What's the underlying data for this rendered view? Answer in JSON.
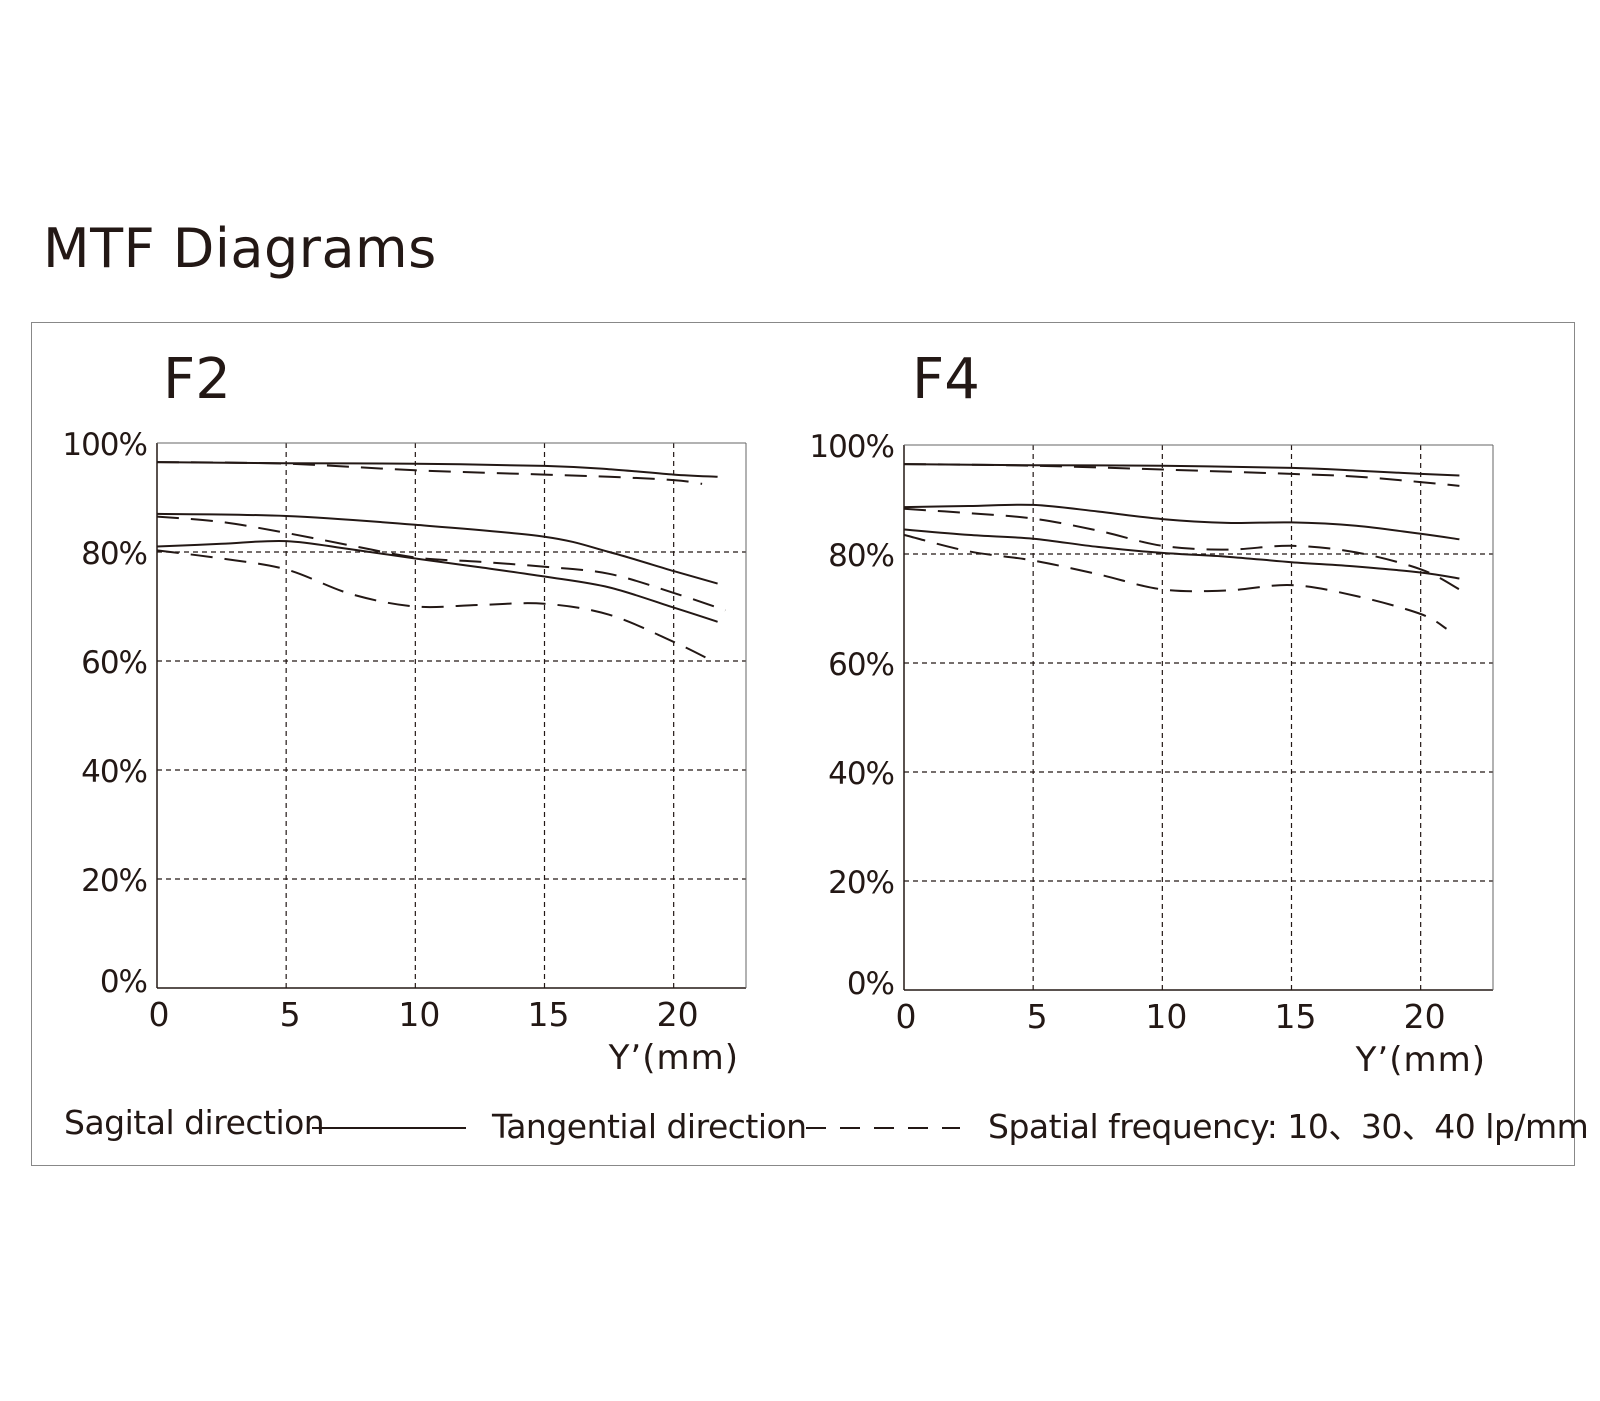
{
  "title": "MTF Diagrams",
  "legend": {
    "sagittal": "Sagital direction",
    "tangential": "Tangential direction",
    "spatial_frequency": "Spatial frequency: 10、30、40 lp/mm"
  },
  "colors": {
    "line": "#231815",
    "grid": "#231815",
    "border": "#888888"
  },
  "chart_data": [
    {
      "type": "line",
      "title": "F2",
      "xlabel": "Y’(mm)",
      "ylabel": "",
      "xlim": [
        0,
        22.8
      ],
      "ylim": [
        0,
        100
      ],
      "x_ticks": [
        0,
        5,
        10,
        15,
        20
      ],
      "x_tick_labels": [
        "0",
        "5",
        "10",
        "15",
        "20"
      ],
      "y_ticks": [
        0,
        20,
        40,
        60,
        80,
        100
      ],
      "y_tick_labels": [
        "0%",
        "20%",
        "40%",
        "60%",
        "80%",
        "100%"
      ],
      "grid": true,
      "series": [
        {
          "name": "Sagittal 10 lp/mm",
          "style": "solid",
          "x": [
            0,
            5,
            10,
            15,
            17.5,
            20,
            21.7
          ],
          "y": [
            96.5,
            96.3,
            96.2,
            95.8,
            95.2,
            94.2,
            93.8
          ]
        },
        {
          "name": "Tangential 10 lp/mm",
          "style": "dashed",
          "x": [
            0,
            5,
            10,
            15,
            17.5,
            20,
            21.1
          ],
          "y": [
            96.5,
            96.2,
            95,
            94.2,
            93.8,
            93.2,
            92.5
          ]
        },
        {
          "name": "Sagittal 30 lp/mm",
          "style": "solid",
          "x": [
            0,
            5,
            10,
            15,
            17.5,
            20,
            21.7
          ],
          "y": [
            87,
            86.6,
            85,
            82.8,
            80,
            76.5,
            74.2
          ]
        },
        {
          "name": "Tangential 30 lp/mm",
          "style": "dashed",
          "x": [
            0,
            2.5,
            5,
            7.5,
            10,
            12.5,
            15,
            17.5,
            20,
            22
          ],
          "y": [
            86.5,
            85.5,
            83.5,
            81.2,
            79,
            78.2,
            77.3,
            76,
            72.5,
            69.3
          ]
        },
        {
          "name": "Sagittal 40 lp/mm",
          "style": "solid",
          "x": [
            0,
            2.5,
            5,
            7.5,
            10,
            12.5,
            15,
            17.5,
            20,
            21.7
          ],
          "y": [
            81,
            81.5,
            82,
            80.5,
            78.8,
            77.2,
            75.5,
            73.5,
            69.8,
            67.2
          ]
        },
        {
          "name": "Tangential 40 lp/mm",
          "style": "dashed",
          "x": [
            0,
            2.5,
            5,
            7.5,
            10,
            12.5,
            15,
            17.5,
            20,
            21.5
          ],
          "y": [
            80.3,
            78.8,
            76.8,
            72.3,
            70,
            70.3,
            70.5,
            68.5,
            63.5,
            60
          ]
        }
      ]
    },
    {
      "type": "line",
      "title": "F4",
      "xlabel": "Y’(mm)",
      "ylabel": "",
      "xlim": [
        0,
        22.8
      ],
      "ylim": [
        0,
        100
      ],
      "x_ticks": [
        0,
        5,
        10,
        15,
        20
      ],
      "x_tick_labels": [
        "0",
        "5",
        "10",
        "15",
        "20"
      ],
      "y_ticks": [
        0,
        20,
        40,
        60,
        80,
        100
      ],
      "y_tick_labels": [
        "0%",
        "20%",
        "40%",
        "60%",
        "80%",
        "100%"
      ],
      "grid": true,
      "series": [
        {
          "name": "Sagittal 10 lp/mm",
          "style": "solid",
          "x": [
            0,
            5,
            10,
            15,
            17.5,
            20,
            21.5
          ],
          "y": [
            96.5,
            96.3,
            96.2,
            95.8,
            95.3,
            94.7,
            94.4
          ]
        },
        {
          "name": "Tangential 10 lp/mm",
          "style": "dashed",
          "x": [
            0,
            5,
            10,
            15,
            17.5,
            20,
            21.5
          ],
          "y": [
            96.5,
            96.2,
            95.5,
            94.7,
            94.2,
            93.2,
            92.5
          ]
        },
        {
          "name": "Sagittal 30 lp/mm",
          "style": "solid",
          "x": [
            0,
            2.5,
            5,
            7.5,
            10,
            12.5,
            15,
            17.5,
            20,
            21.5
          ],
          "y": [
            88.6,
            88.8,
            89,
            87.8,
            86.4,
            85.7,
            85.8,
            85.2,
            83.7,
            82.7
          ]
        },
        {
          "name": "Tangential 30 lp/mm",
          "style": "dashed",
          "x": [
            0,
            2.5,
            5,
            7.5,
            10,
            12.5,
            15,
            17.5,
            20,
            21.5
          ],
          "y": [
            88.3,
            87.5,
            86.5,
            84.3,
            81.5,
            80.8,
            81.5,
            80.3,
            77.2,
            73.5
          ]
        },
        {
          "name": "Sagittal 40 lp/mm",
          "style": "solid",
          "x": [
            0,
            2.5,
            5,
            7.5,
            10,
            12.5,
            15,
            17.5,
            20,
            21.5
          ],
          "y": [
            84.5,
            83.5,
            82.8,
            81.3,
            80.2,
            79.5,
            78.5,
            77.7,
            76.6,
            75.5
          ]
        },
        {
          "name": "Tangential 40 lp/mm",
          "style": "dashed",
          "x": [
            0,
            2.5,
            5,
            7.5,
            10,
            12.5,
            15,
            17.5,
            20,
            21
          ],
          "y": [
            83.5,
            80.5,
            78.8,
            76.3,
            73.5,
            73.3,
            74.3,
            72.3,
            69,
            66.3
          ]
        }
      ]
    }
  ]
}
